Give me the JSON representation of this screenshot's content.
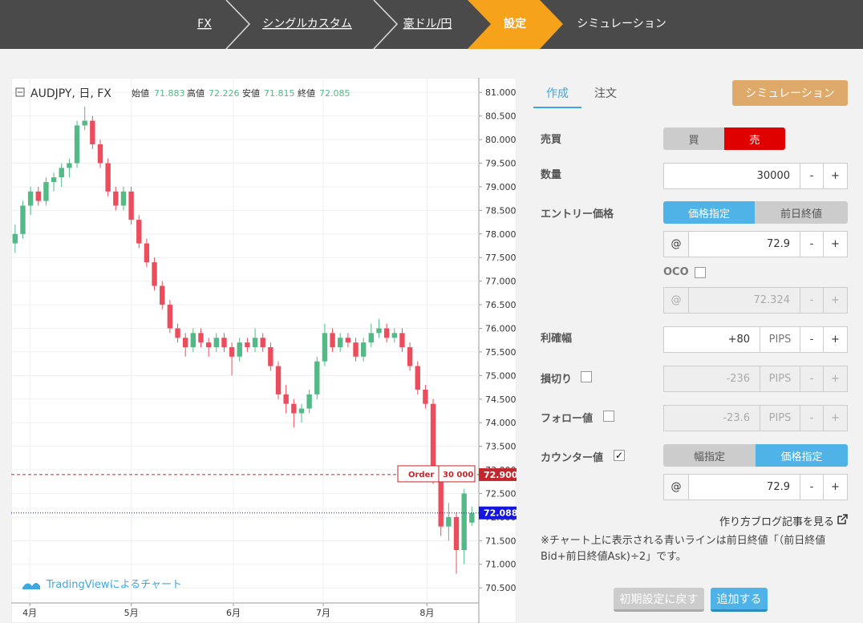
{
  "nav": {
    "items": [
      "FX",
      "シングルカスタム",
      "豪ドル/円",
      "設定",
      "シミュレーション"
    ]
  },
  "chart_header": {
    "symbol": "AUDJPY, 日, FX",
    "open_label": "始値",
    "high_label": "高値",
    "low_label": "安値",
    "close_label": "終値"
  },
  "chart_data": {
    "type": "candlestick",
    "candles": [
      [
        77.8,
        78.2,
        77.6,
        78.0
      ],
      [
        78.0,
        78.7,
        77.9,
        78.6
      ],
      [
        78.6,
        79.0,
        78.4,
        78.9
      ],
      [
        78.9,
        79.0,
        78.6,
        78.7
      ],
      [
        78.7,
        79.2,
        78.6,
        79.1
      ],
      [
        79.1,
        79.3,
        78.9,
        79.2
      ],
      [
        79.2,
        79.5,
        79.0,
        79.4
      ],
      [
        79.4,
        79.6,
        79.2,
        79.5
      ],
      [
        79.5,
        80.4,
        79.4,
        80.3
      ],
      [
        80.3,
        80.7,
        80.2,
        80.4
      ],
      [
        80.4,
        80.5,
        79.8,
        79.9
      ],
      [
        79.9,
        80.0,
        79.4,
        79.5
      ],
      [
        79.5,
        79.6,
        78.8,
        78.9
      ],
      [
        78.9,
        79.0,
        78.5,
        78.6
      ],
      [
        78.6,
        79.0,
        78.5,
        78.9
      ],
      [
        78.9,
        79.0,
        78.2,
        78.3
      ],
      [
        78.3,
        78.4,
        77.7,
        77.8
      ],
      [
        77.8,
        77.9,
        77.3,
        77.4
      ],
      [
        77.4,
        77.5,
        76.8,
        76.9
      ],
      [
        76.9,
        77.0,
        76.4,
        76.5
      ],
      [
        76.5,
        76.6,
        75.9,
        76.0
      ],
      [
        76.0,
        76.1,
        75.7,
        75.8
      ],
      [
        75.8,
        75.9,
        75.4,
        75.6
      ],
      [
        75.6,
        76.0,
        75.5,
        75.9
      ],
      [
        75.9,
        76.0,
        75.6,
        75.7
      ],
      [
        75.7,
        75.8,
        75.4,
        75.6
      ],
      [
        75.6,
        75.9,
        75.5,
        75.8
      ],
      [
        75.8,
        75.9,
        75.5,
        75.6
      ],
      [
        75.6,
        75.7,
        75.0,
        75.4
      ],
      [
        75.4,
        75.8,
        75.3,
        75.7
      ],
      [
        75.7,
        75.8,
        75.5,
        75.6
      ],
      [
        75.6,
        76.0,
        75.5,
        75.8
      ],
      [
        75.8,
        75.9,
        75.5,
        75.6
      ],
      [
        75.6,
        75.7,
        75.1,
        75.2
      ],
      [
        75.2,
        75.3,
        74.5,
        74.6
      ],
      [
        74.6,
        74.8,
        74.2,
        74.4
      ],
      [
        74.4,
        74.5,
        73.9,
        74.2
      ],
      [
        74.2,
        74.4,
        74.0,
        74.3
      ],
      [
        74.3,
        74.7,
        74.2,
        74.6
      ],
      [
        74.6,
        75.4,
        74.5,
        75.3
      ],
      [
        75.3,
        76.1,
        75.2,
        75.9
      ],
      [
        75.9,
        76.0,
        75.5,
        75.6
      ],
      [
        75.6,
        75.9,
        75.5,
        75.8
      ],
      [
        75.8,
        75.9,
        75.6,
        75.7
      ],
      [
        75.7,
        75.8,
        75.3,
        75.4
      ],
      [
        75.4,
        75.8,
        75.3,
        75.7
      ],
      [
        75.7,
        76.1,
        75.6,
        75.9
      ],
      [
        75.9,
        76.2,
        75.8,
        76.0
      ],
      [
        76.0,
        76.1,
        75.7,
        75.8
      ],
      [
        75.8,
        76.0,
        75.7,
        75.9
      ],
      [
        75.9,
        76.0,
        75.5,
        75.6
      ],
      [
        75.6,
        75.7,
        75.1,
        75.2
      ],
      [
        75.2,
        75.3,
        74.6,
        74.7
      ],
      [
        74.7,
        74.8,
        74.3,
        74.4
      ],
      [
        74.4,
        74.5,
        72.7,
        72.8
      ],
      [
        72.8,
        72.9,
        71.6,
        71.8
      ],
      [
        71.8,
        72.3,
        71.5,
        72.0
      ],
      [
        72.0,
        72.1,
        70.8,
        71.3
      ],
      [
        71.3,
        72.6,
        71.0,
        72.5
      ],
      [
        71.883,
        72.226,
        71.815,
        72.085
      ]
    ],
    "up_color": "#53b987",
    "down_color": "#eb4d5c",
    "xlim": [
      -0.5,
      59.9
    ],
    "ylim": [
      70.18,
      81.31
    ],
    "xticks": [
      {
        "value": 1.9,
        "label": "4月"
      },
      {
        "value": 15.0,
        "label": "5月"
      },
      {
        "value": 28.2,
        "label": "6月"
      },
      {
        "value": 39.8,
        "label": "7月"
      },
      {
        "value": 53.2,
        "label": "8月"
      }
    ],
    "yticks": [
      {
        "value": 70.5,
        "label": "70.500"
      },
      {
        "value": 71,
        "label": "71.000"
      },
      {
        "value": 71.5,
        "label": "71.500"
      },
      {
        "value": 72,
        "label": "72.000"
      },
      {
        "value": 72.5,
        "label": "72.500"
      },
      {
        "value": 73,
        "label": "73.000"
      },
      {
        "value": 73.5,
        "label": "73.500"
      },
      {
        "value": 74,
        "label": "74.000"
      },
      {
        "value": 74.5,
        "label": "74.500"
      },
      {
        "value": 75,
        "label": "75.000"
      },
      {
        "value": 75.5,
        "label": "75.500"
      },
      {
        "value": 76,
        "label": "76.000"
      },
      {
        "value": 76.5,
        "label": "76.500"
      },
      {
        "value": 77,
        "label": "77.000"
      },
      {
        "value": 77.5,
        "label": "77.500"
      },
      {
        "value": 78,
        "label": "78.000"
      },
      {
        "value": 78.5,
        "label": "78.500"
      },
      {
        "value": 79,
        "label": "79.000"
      },
      {
        "value": 79.5,
        "label": "79.500"
      },
      {
        "value": 80,
        "label": "80.000"
      },
      {
        "value": 80.5,
        "label": "80.500"
      },
      {
        "value": 81,
        "label": "81.000"
      }
    ],
    "grid": true,
    "order_line": {
      "value": 72.9,
      "label": "72.900",
      "tag": "Order",
      "quantity": "30 000",
      "color": "#c1272d"
    },
    "prev_close_line": {
      "value": 72.088,
      "label": "72.088",
      "color": "#1515e0"
    },
    "credit": "TradingViewによるチャート"
  },
  "form": {
    "tabs": [
      "作成",
      "注文"
    ],
    "simulate_button": "シミュレーション",
    "side_label": "売買",
    "buy": "買",
    "sell": "売",
    "qty_label": "数量",
    "qty": "30000",
    "entry_label": "エントリー価格",
    "entry_mode_price": "価格指定",
    "entry_mode_prev": "前日終値",
    "at": "@",
    "entry_price": "72.9",
    "oco_label": "OCO",
    "oco_price": "72.324",
    "tp_label": "利確幅",
    "tp": "+80",
    "sl_label": "損切り",
    "sl": "-236",
    "follow_label": "フォロー値",
    "follow": "-23.6",
    "pips": "PIPS",
    "counter_label": "カウンター値",
    "counter_mode_width": "幅指定",
    "counter_mode_price": "価格指定",
    "counter_price": "72.9",
    "minus": "-",
    "plus": "+",
    "check": "✓",
    "blog_link": "作り方ブログ記事を見る",
    "note": "※チャート上に表示される青いラインは前日終値「（前日終値Bid+前日終値Ask)÷2」です。",
    "reset_button": "初期設定に戻す",
    "add_button": "追加する"
  }
}
